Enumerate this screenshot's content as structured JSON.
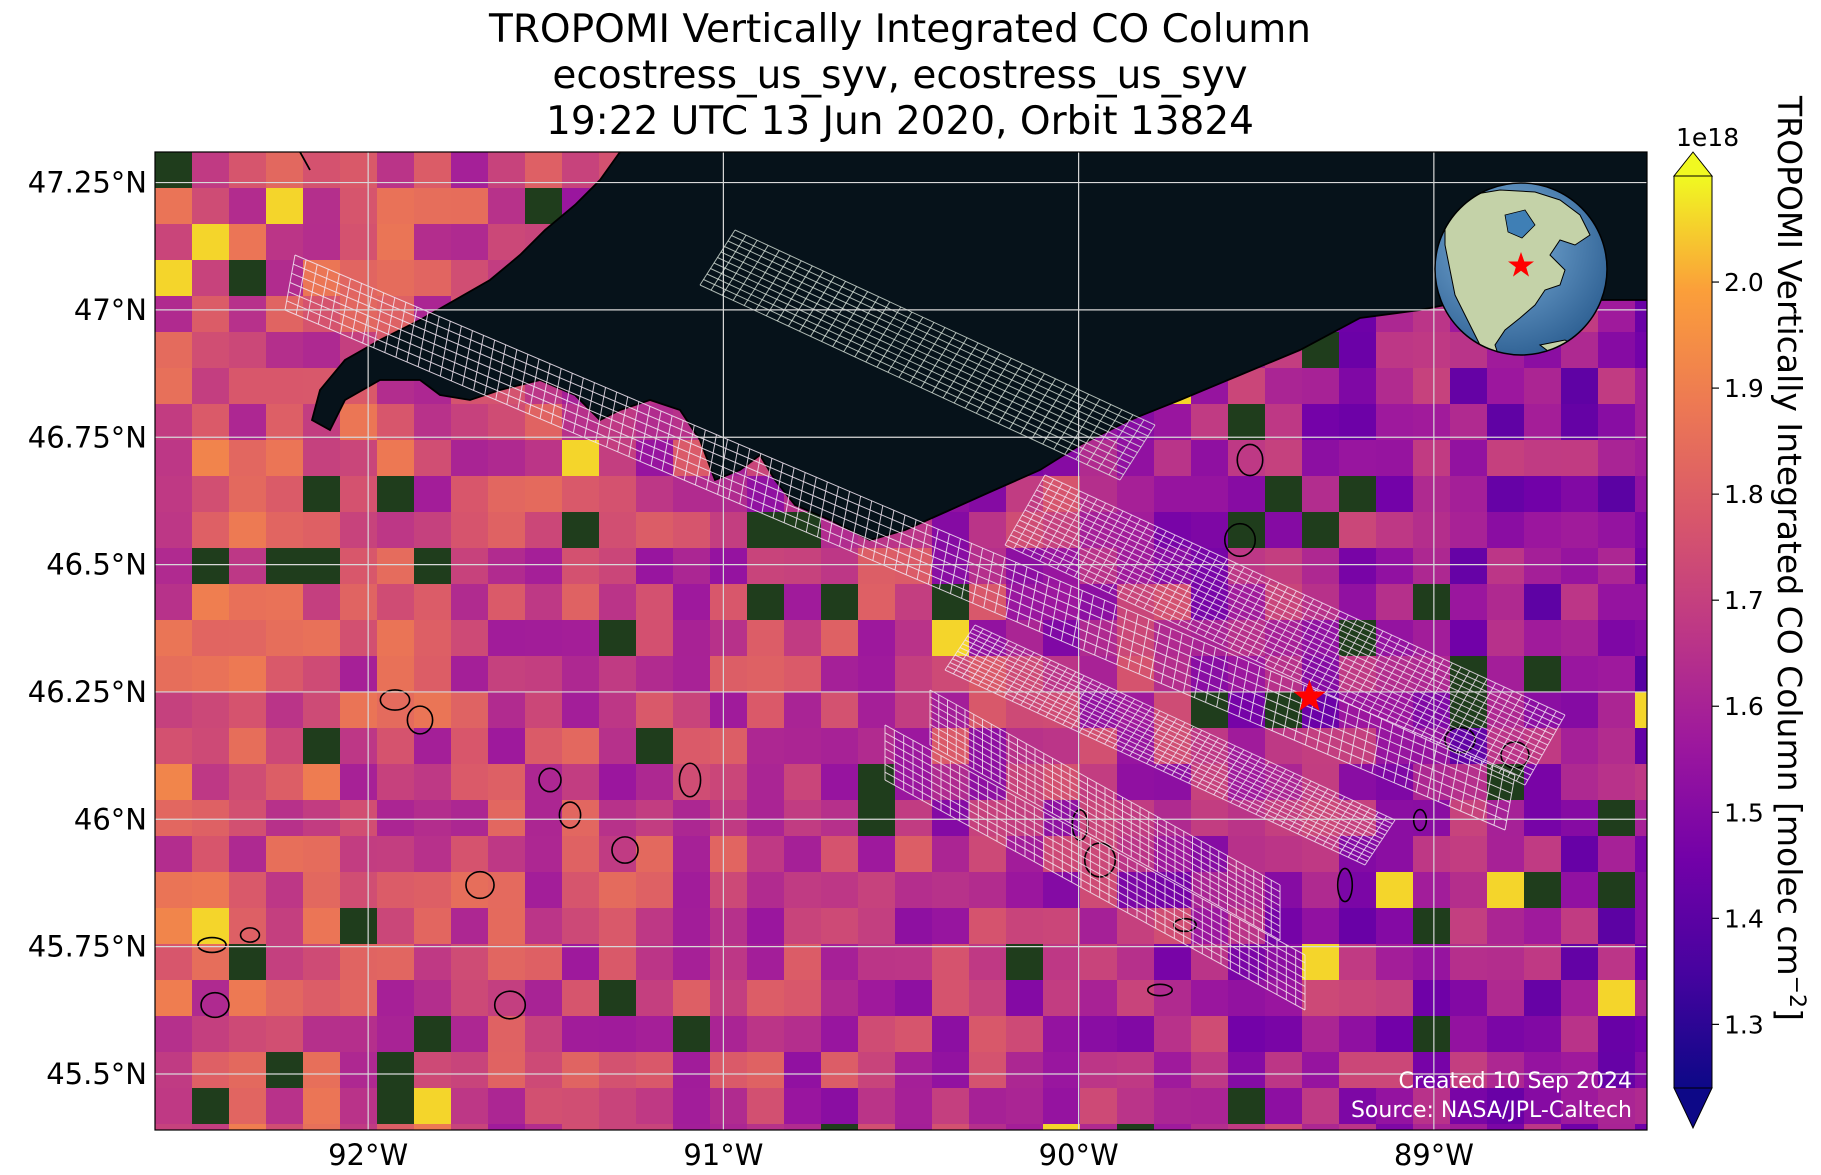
{
  "title": {
    "line1": "TROPOMI Vertically Integrated CO Column",
    "line2": "ecostress_us_syv, ecostress_us_syv",
    "line3": "19:22 UTC 13 Jun 2020, Orbit 13824"
  },
  "map": {
    "extent": {
      "lon_min": -92.6,
      "lon_max": -88.4,
      "lat_min": 45.39,
      "lat_max": 47.31
    },
    "lat_ticks": [
      {
        "value": 47.25,
        "label": "47.25°N"
      },
      {
        "value": 47.0,
        "label": "47°N"
      },
      {
        "value": 46.75,
        "label": "46.75°N"
      },
      {
        "value": 46.5,
        "label": "46.5°N"
      },
      {
        "value": 46.25,
        "label": "46.25°N"
      },
      {
        "value": 46.0,
        "label": "46°N"
      },
      {
        "value": 45.75,
        "label": "45.75°N"
      },
      {
        "value": 45.5,
        "label": "45.5°N"
      }
    ],
    "lon_ticks": [
      {
        "value": -92,
        "label": "92°W"
      },
      {
        "value": -91,
        "label": "91°W"
      },
      {
        "value": -90,
        "label": "90°W"
      },
      {
        "value": -89,
        "label": "89°W"
      }
    ],
    "gridlines": true,
    "site_marker": {
      "lon": -89.35,
      "lat": 46.24,
      "symbol": "red-star"
    },
    "water_body": "Lake Superior",
    "credits": {
      "created": "Created 10 Sep 2024",
      "source": "Source: NASA/JPL-Caltech"
    }
  },
  "colorbar": {
    "label": "TROPOMI Vertically Integrated CO Column [molec cm",
    "label_sup": "−2",
    "label_close": "]",
    "multiplier": "1e18",
    "min": 1.24,
    "max": 2.1,
    "colormap": "plasma",
    "extend": "both",
    "ticks": [
      {
        "value": 1.3,
        "label": "1.3"
      },
      {
        "value": 1.4,
        "label": "1.4"
      },
      {
        "value": 1.5,
        "label": "1.5"
      },
      {
        "value": 1.6,
        "label": "1.6"
      },
      {
        "value": 1.7,
        "label": "1.7"
      },
      {
        "value": 1.8,
        "label": "1.8"
      },
      {
        "value": 1.9,
        "label": "1.9"
      },
      {
        "value": 2.0,
        "label": "2.0"
      }
    ]
  },
  "inset_globe": {
    "center": "North America",
    "site_marker": "red-star"
  },
  "colors": {
    "lake": "#06121a",
    "grid": "#d8d8d8",
    "coastline": "#000000",
    "footprint_overlay": "#ffffff",
    "marker": "#ff0000",
    "credit_text": "#ffffff",
    "ocean_globe": "#3f7fb5",
    "land_globe": "#c4d2a8"
  }
}
